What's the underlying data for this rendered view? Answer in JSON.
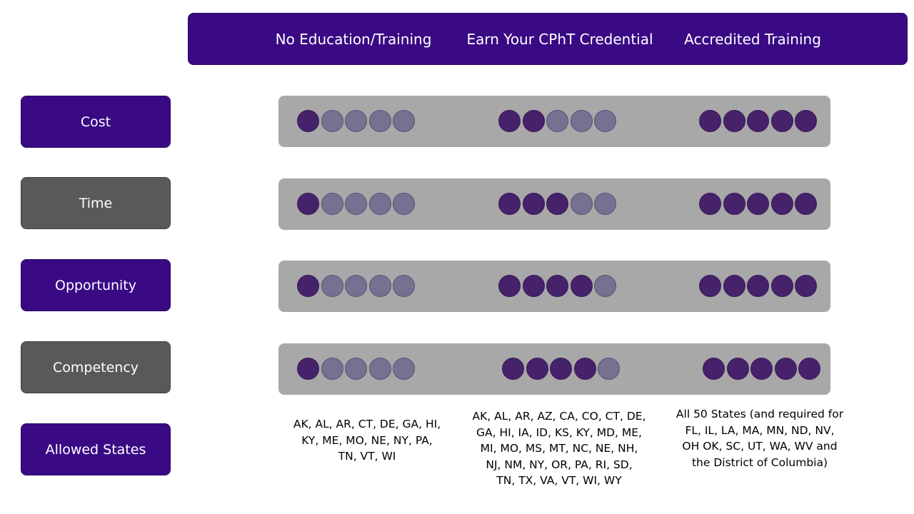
{
  "columns": [
    "No Education/Training",
    "Earn Your CPhT Credential",
    "Accredited Training"
  ],
  "rows": [
    {
      "label": "Cost",
      "ratings": [
        1,
        2,
        5
      ],
      "max_rating": 5
    },
    {
      "label": "Time",
      "ratings": [
        1,
        3,
        5
      ],
      "max_rating": 5
    },
    {
      "label": "Opportunity",
      "ratings": [
        1,
        4,
        5
      ],
      "max_rating": 5
    },
    {
      "label": "Competency",
      "ratings": [
        1,
        4,
        5
      ],
      "max_rating": 5
    }
  ],
  "allowed_states": {
    "label": "Allowed States",
    "values": [
      "AK, AL, AR, CT, DE, GA, HI,\nKY, ME, MO, NE, NY, PA,\nTN, VT, WI",
      "AK, AL, AR, AZ, CA, CO, CT, DE,\nGA, HI, IA, ID, KS, KY, MD, ME,\nMI, MO, MS, MT, NC, NE, NH,\nNJ, NM, NY, OR, PA, RI, SD,\nTN, TX, VA, VT, WI, WY",
      "All 50 States (and required for\nFL, IL, LA, MA, MN, ND, NV,\nOH OK, SC, UT, WA, WV and\nthe District of Columbia)"
    ]
  },
  "colors": {
    "header_bg": "#3a0a85",
    "label_purple": "#3a0a85",
    "label_gray": "#595959",
    "bar_bg": "#a8a8a8",
    "dot_filled": "#452269",
    "dot_empty": "#787090"
  }
}
